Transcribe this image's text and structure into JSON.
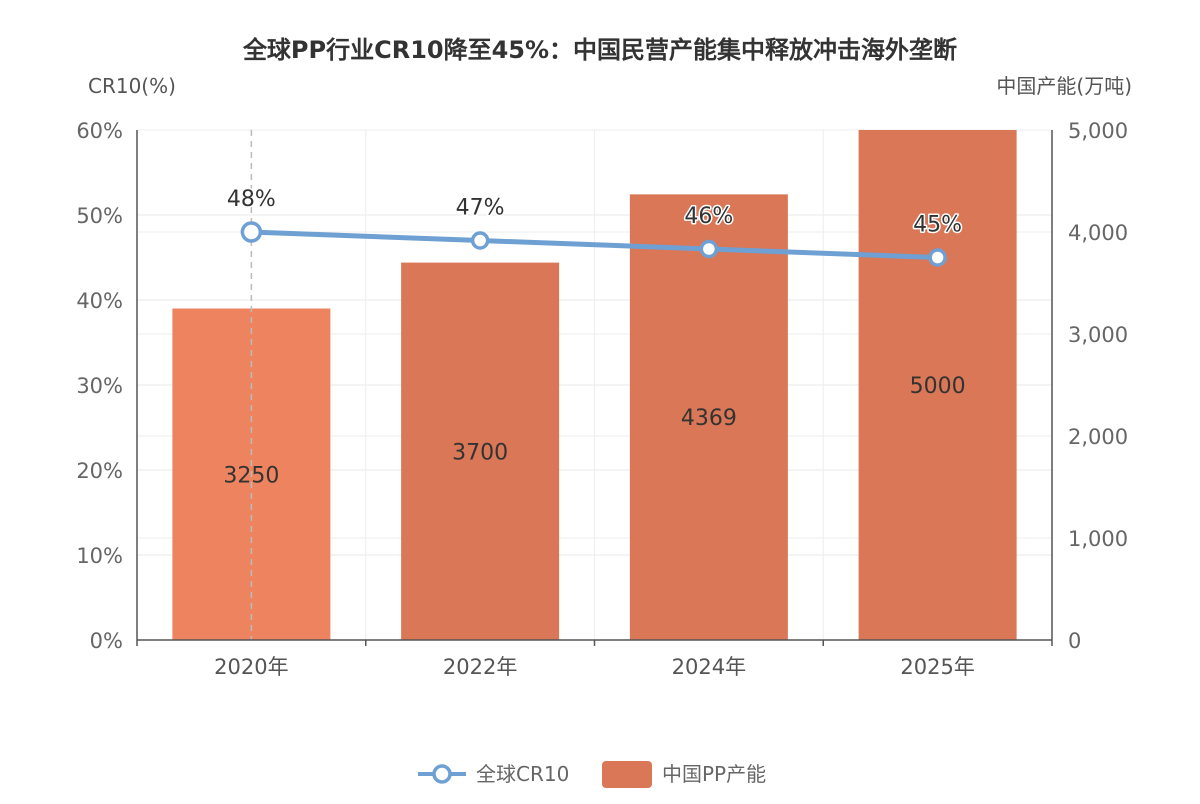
{
  "chart_data": {
    "type": "bar",
    "title": "全球PP行业CR10降至45%：中国民营产能集中释放冲击海外垄断",
    "categories": [
      "2020年",
      "2022年",
      "2024年",
      "2025年"
    ],
    "left_axis": {
      "name": "CR10(%)",
      "range": [
        0,
        60
      ],
      "ticks": [
        "0%",
        "10%",
        "20%",
        "30%",
        "40%",
        "50%",
        "60%"
      ]
    },
    "right_axis": {
      "name": "中国产能(万吨)",
      "range": [
        0,
        5000
      ],
      "ticks": [
        "0",
        "1,000",
        "2,000",
        "3,000",
        "4,000",
        "5,000"
      ]
    },
    "series": [
      {
        "name": "中国PP产能",
        "type": "bar",
        "axis": "right",
        "values": [
          3250,
          3700,
          4369,
          5000
        ],
        "labels": [
          "3250",
          "3700",
          "4369",
          "5000"
        ],
        "color": "#D97756",
        "highlight_color": "#EE845F"
      },
      {
        "name": "全球CR10",
        "type": "line",
        "axis": "left",
        "values": [
          48,
          47,
          46,
          45
        ],
        "labels": [
          "48%",
          "47%",
          "46%",
          "45%"
        ],
        "color": "#6FA0D3"
      }
    ],
    "grid": true,
    "legend_position": "bottom-center"
  }
}
